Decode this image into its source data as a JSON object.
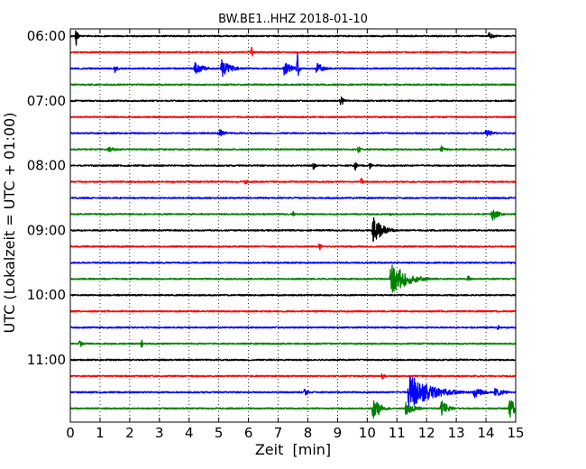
{
  "chart_data": {
    "type": "line",
    "title": "BW.BE1..HHZ 2018-01-10",
    "xlabel": "Zeit  [min]",
    "ylabel": "UTC (Lokalzeit = UTC + 01:00)",
    "xlim": [
      0,
      15
    ],
    "x_ticks": [
      "0",
      "1",
      "2",
      "3",
      "4",
      "5",
      "6",
      "7",
      "8",
      "9",
      "10",
      "11",
      "12",
      "13",
      "14",
      "15"
    ],
    "y_ticks": [
      {
        "trace": 0,
        "label": "06:00"
      },
      {
        "trace": 4,
        "label": "07:00"
      },
      {
        "trace": 8,
        "label": "08:00"
      },
      {
        "trace": 12,
        "label": "09:00"
      },
      {
        "trace": 16,
        "label": "10:00"
      },
      {
        "trace": 20,
        "label": "11:00"
      }
    ],
    "grid": "vertical dotted at each minute",
    "trace_start_times": [
      "06:00",
      "06:15",
      "06:30",
      "06:45",
      "07:00",
      "07:15",
      "07:30",
      "07:45",
      "08:00",
      "08:15",
      "08:30",
      "08:45",
      "09:00",
      "09:15",
      "09:30",
      "09:45",
      "10:00",
      "10:15",
      "10:30",
      "10:45",
      "11:00",
      "11:15",
      "11:30",
      "11:45"
    ],
    "colors": [
      "#000000",
      "#ff0000",
      "#0000ff",
      "#008000"
    ],
    "events": [
      {
        "trace": 0,
        "minute": 0.2,
        "amp": 1.0,
        "dur": 0.05
      },
      {
        "trace": 0,
        "minute": 14.1,
        "amp": 0.3,
        "dur": 0.2
      },
      {
        "trace": 1,
        "minute": 6.1,
        "amp": 0.6,
        "dur": 0.05
      },
      {
        "trace": 2,
        "minute": 1.5,
        "amp": 0.4,
        "dur": 0.1
      },
      {
        "trace": 2,
        "minute": 4.2,
        "amp": 0.5,
        "dur": 0.3
      },
      {
        "trace": 2,
        "minute": 5.1,
        "amp": 0.8,
        "dur": 0.3
      },
      {
        "trace": 2,
        "minute": 7.2,
        "amp": 0.6,
        "dur": 0.3
      },
      {
        "trace": 2,
        "minute": 7.65,
        "amp": 1.3,
        "dur": 0.05
      },
      {
        "trace": 2,
        "minute": 8.3,
        "amp": 0.6,
        "dur": 0.2
      },
      {
        "trace": 4,
        "minute": 9.1,
        "amp": 0.6,
        "dur": 0.1
      },
      {
        "trace": 6,
        "minute": 5.0,
        "amp": 0.4,
        "dur": 0.2
      },
      {
        "trace": 6,
        "minute": 14.0,
        "amp": 0.3,
        "dur": 0.3
      },
      {
        "trace": 7,
        "minute": 1.3,
        "amp": 0.3,
        "dur": 0.2
      },
      {
        "trace": 7,
        "minute": 9.7,
        "amp": 0.3,
        "dur": 0.1
      },
      {
        "trace": 7,
        "minute": 12.5,
        "amp": 0.4,
        "dur": 0.1
      },
      {
        "trace": 8,
        "minute": 8.2,
        "amp": 0.5,
        "dur": 0.05
      },
      {
        "trace": 8,
        "minute": 9.6,
        "amp": 0.5,
        "dur": 0.05
      },
      {
        "trace": 8,
        "minute": 10.1,
        "amp": 0.4,
        "dur": 0.05
      },
      {
        "trace": 9,
        "minute": 5.9,
        "amp": 0.3,
        "dur": 0.1
      },
      {
        "trace": 9,
        "minute": 9.8,
        "amp": 0.4,
        "dur": 0.05
      },
      {
        "trace": 11,
        "minute": 7.5,
        "amp": 0.4,
        "dur": 0.05
      },
      {
        "trace": 11,
        "minute": 10.8,
        "amp": 0.3,
        "dur": 0.05
      },
      {
        "trace": 11,
        "minute": 14.2,
        "amp": 0.6,
        "dur": 0.2
      },
      {
        "trace": 12,
        "minute": 10.2,
        "amp": 1.2,
        "dur": 0.3
      },
      {
        "trace": 13,
        "minute": 8.4,
        "amp": 0.4,
        "dur": 0.05
      },
      {
        "trace": 14,
        "minute": 14.8,
        "amp": 0.3,
        "dur": 0.05
      },
      {
        "trace": 15,
        "minute": 10.8,
        "amp": 1.5,
        "dur": 0.5
      },
      {
        "trace": 15,
        "minute": 13.4,
        "amp": 0.3,
        "dur": 0.1
      },
      {
        "trace": 18,
        "minute": 14.4,
        "amp": 0.3,
        "dur": 0.05
      },
      {
        "trace": 19,
        "minute": 0.3,
        "amp": 0.4,
        "dur": 0.1
      },
      {
        "trace": 19,
        "minute": 2.4,
        "amp": 0.4,
        "dur": 0.05
      },
      {
        "trace": 21,
        "minute": 10.5,
        "amp": 0.3,
        "dur": 0.1
      },
      {
        "trace": 22,
        "minute": 7.9,
        "amp": 0.4,
        "dur": 0.1
      },
      {
        "trace": 22,
        "minute": 11.4,
        "amp": 1.6,
        "dur": 0.7
      },
      {
        "trace": 22,
        "minute": 13.6,
        "amp": 0.5,
        "dur": 0.3
      },
      {
        "trace": 22,
        "minute": 14.3,
        "amp": 0.4,
        "dur": 0.3
      },
      {
        "trace": 23,
        "minute": 10.2,
        "amp": 1.3,
        "dur": 0.2
      },
      {
        "trace": 23,
        "minute": 11.3,
        "amp": 0.6,
        "dur": 0.3
      },
      {
        "trace": 23,
        "minute": 12.5,
        "amp": 0.8,
        "dur": 0.2
      },
      {
        "trace": 23,
        "minute": 14.8,
        "amp": 0.9,
        "dur": 0.2
      }
    ]
  }
}
